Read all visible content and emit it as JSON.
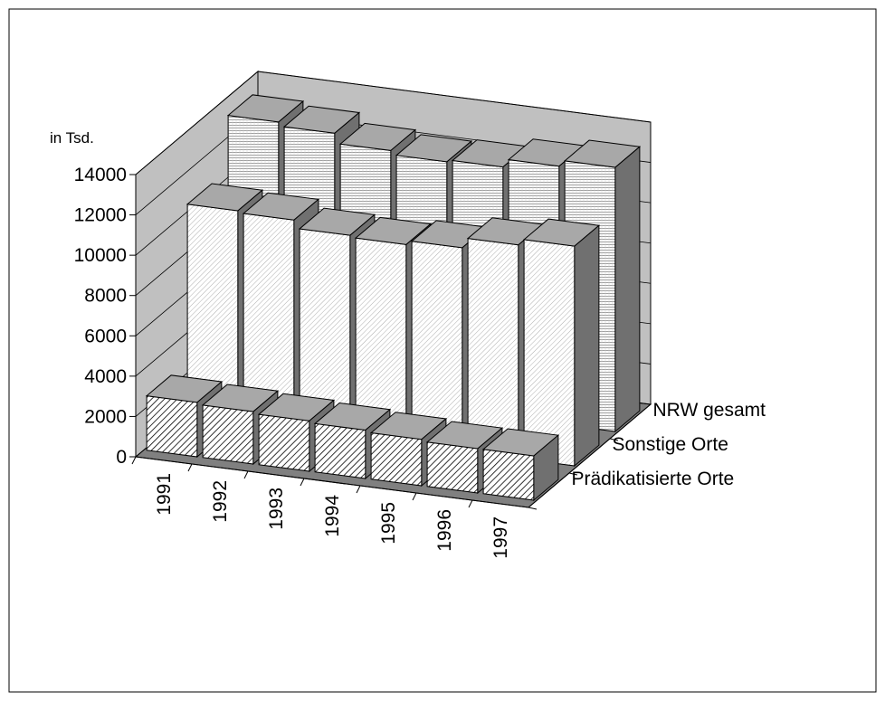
{
  "chart_data": {
    "type": "bar3d",
    "y_label": "in Tsd.",
    "categories": [
      "1991",
      "1992",
      "1993",
      "1994",
      "1995",
      "1996",
      "1997"
    ],
    "series": [
      {
        "name": "Prädikatisierte Orte",
        "values": [
          2700,
          2600,
          2500,
          2400,
          2300,
          2200,
          2200
        ]
      },
      {
        "name": "Sonstige Orte",
        "values": [
          10500,
          10400,
          10000,
          9900,
          10100,
          10600,
          10900
        ]
      },
      {
        "name": "NRW gesamt",
        "values": [
          13200,
          13000,
          12500,
          12300,
          12400,
          12800,
          13100
        ]
      }
    ],
    "ylim": [
      0,
      14000
    ],
    "yticks": [
      0,
      2000,
      4000,
      6000,
      8000,
      10000,
      12000,
      14000
    ],
    "grid": true
  }
}
